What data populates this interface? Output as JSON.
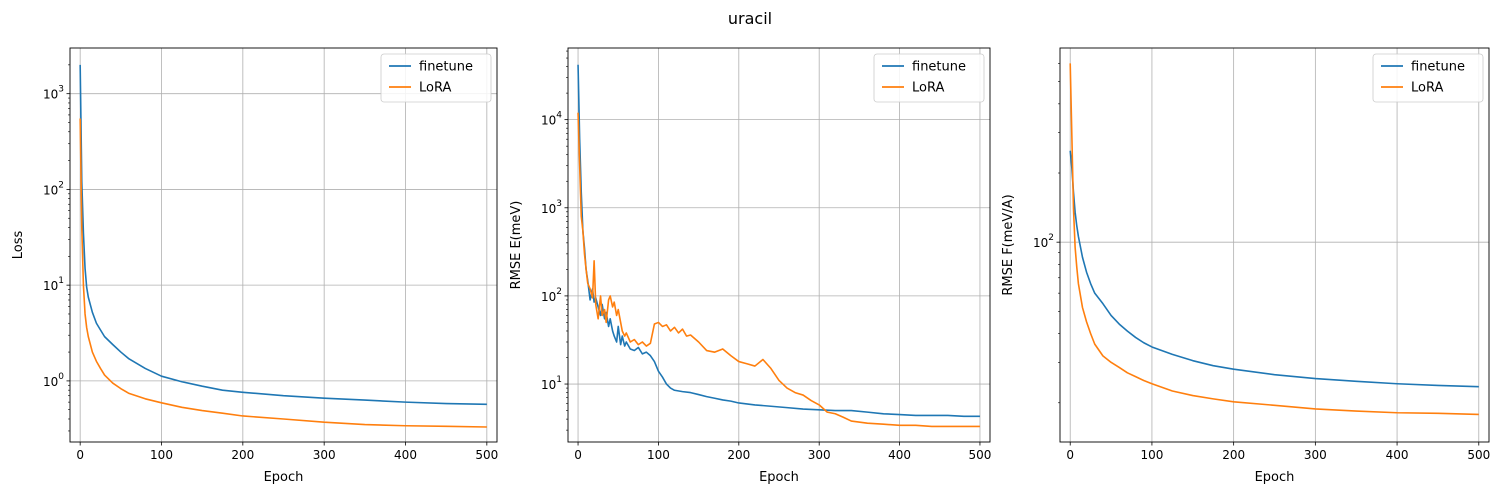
{
  "figure": {
    "title": "uracil"
  },
  "chart_data": [
    {
      "type": "line",
      "title": "",
      "xlabel": "Epoch",
      "ylabel": "Loss",
      "yscale": "log",
      "xlim": [
        -12.5,
        512.5
      ],
      "ylim": [
        0.23,
        3000
      ],
      "xticks": [
        0,
        100,
        200,
        300,
        400,
        500
      ],
      "xtick_labels": [
        "0",
        "100",
        "200",
        "300",
        "400",
        "500"
      ],
      "yticks": [
        1,
        10,
        100,
        1000
      ],
      "ytick_labels": [
        "10^0",
        "10^1",
        "10^2",
        "10^3"
      ],
      "grid": true,
      "legend": "top-right",
      "series": [
        {
          "name": "finetune",
          "color": "#1f77b4",
          "x": [
            0,
            2,
            4,
            6,
            8,
            10,
            15,
            20,
            25,
            30,
            40,
            50,
            60,
            80,
            100,
            125,
            150,
            175,
            200,
            250,
            300,
            350,
            400,
            450,
            500
          ],
          "y": [
            2000,
            120,
            35,
            15,
            9.5,
            7.5,
            5.2,
            4.0,
            3.4,
            2.9,
            2.4,
            2.0,
            1.7,
            1.35,
            1.12,
            0.98,
            0.88,
            0.8,
            0.76,
            0.7,
            0.66,
            0.63,
            0.6,
            0.58,
            0.57
          ]
        },
        {
          "name": "LoRA",
          "color": "#ff7f0e",
          "x": [
            0,
            2,
            4,
            6,
            8,
            10,
            15,
            20,
            25,
            30,
            40,
            50,
            60,
            80,
            100,
            125,
            150,
            175,
            200,
            250,
            300,
            350,
            400,
            450,
            500
          ],
          "y": [
            550,
            40,
            10,
            5.0,
            3.6,
            2.9,
            2.0,
            1.6,
            1.35,
            1.15,
            0.95,
            0.83,
            0.74,
            0.65,
            0.59,
            0.53,
            0.49,
            0.46,
            0.43,
            0.4,
            0.37,
            0.35,
            0.34,
            0.335,
            0.33
          ]
        }
      ]
    },
    {
      "type": "line",
      "title": "",
      "xlabel": "Epoch",
      "ylabel": "RMSE E(meV)",
      "yscale": "log",
      "xlim": [
        -12.5,
        512.5
      ],
      "ylim": [
        2.2,
        65000
      ],
      "xticks": [
        0,
        100,
        200,
        300,
        400,
        500
      ],
      "xtick_labels": [
        "0",
        "100",
        "200",
        "300",
        "400",
        "500"
      ],
      "yticks": [
        10,
        100,
        1000,
        10000
      ],
      "ytick_labels": [
        "10^1",
        "10^2",
        "10^3",
        "10^4"
      ],
      "grid": true,
      "legend": "top-right",
      "series": [
        {
          "name": "finetune",
          "color": "#1f77b4",
          "x": [
            0,
            2,
            4,
            6,
            8,
            10,
            12,
            15,
            18,
            20,
            22,
            25,
            28,
            30,
            33,
            35,
            38,
            40,
            43,
            45,
            48,
            50,
            53,
            55,
            58,
            60,
            65,
            70,
            75,
            80,
            85,
            90,
            95,
            100,
            105,
            110,
            115,
            120,
            130,
            140,
            150,
            160,
            170,
            180,
            190,
            200,
            220,
            240,
            260,
            280,
            300,
            320,
            340,
            360,
            380,
            400,
            420,
            440,
            460,
            480,
            500
          ],
          "y": [
            42000,
            6000,
            1500,
            550,
            350,
            200,
            150,
            90,
            120,
            85,
            95,
            75,
            60,
            80,
            55,
            65,
            45,
            55,
            40,
            35,
            30,
            45,
            28,
            35,
            27,
            30,
            25,
            24,
            26,
            22,
            23,
            21,
            18,
            14,
            12,
            10,
            9,
            8.5,
            8.2,
            8.0,
            7.6,
            7.2,
            6.9,
            6.6,
            6.4,
            6.1,
            5.8,
            5.6,
            5.4,
            5.2,
            5.1,
            5.0,
            5.0,
            4.8,
            4.6,
            4.5,
            4.4,
            4.4,
            4.4,
            4.3,
            4.3
          ]
        },
        {
          "name": "LoRA",
          "color": "#ff7f0e",
          "x": [
            0,
            2,
            4,
            6,
            8,
            10,
            12,
            15,
            18,
            20,
            22,
            25,
            28,
            30,
            33,
            35,
            38,
            40,
            43,
            45,
            48,
            50,
            53,
            55,
            58,
            60,
            65,
            70,
            75,
            80,
            85,
            90,
            95,
            100,
            105,
            110,
            115,
            120,
            125,
            130,
            135,
            140,
            150,
            160,
            170,
            180,
            190,
            200,
            210,
            220,
            230,
            240,
            250,
            260,
            270,
            280,
            290,
            300,
            310,
            320,
            330,
            340,
            360,
            380,
            400,
            420,
            440,
            460,
            480,
            500
          ],
          "y": [
            12000,
            3000,
            800,
            550,
            300,
            200,
            140,
            120,
            95,
            250,
            80,
            55,
            100,
            60,
            70,
            50,
            90,
            100,
            75,
            85,
            60,
            70,
            50,
            40,
            35,
            38,
            30,
            32,
            28,
            30,
            27,
            29,
            48,
            50,
            45,
            47,
            40,
            44,
            38,
            42,
            35,
            36,
            30,
            24,
            23,
            25,
            21,
            18,
            17,
            16,
            19,
            15,
            11,
            9,
            8,
            7.5,
            6.5,
            5.8,
            4.8,
            4.6,
            4.2,
            3.8,
            3.6,
            3.5,
            3.4,
            3.4,
            3.3,
            3.3,
            3.3,
            3.3
          ]
        }
      ]
    },
    {
      "type": "line",
      "title": "",
      "xlabel": "Epoch",
      "ylabel": "RMSE F(meV/A)",
      "yscale": "log",
      "xlim": [
        -12.5,
        512.5
      ],
      "ylim": [
        13.5,
        700
      ],
      "xticks": [
        0,
        100,
        200,
        300,
        400,
        500
      ],
      "xtick_labels": [
        "0",
        "100",
        "200",
        "300",
        "400",
        "500"
      ],
      "yticks": [
        100
      ],
      "ytick_labels": [
        "10^2"
      ],
      "grid": true,
      "legend": "top-right",
      "series": [
        {
          "name": "finetune",
          "color": "#1f77b4",
          "x": [
            0,
            2,
            4,
            6,
            8,
            10,
            15,
            20,
            25,
            30,
            40,
            50,
            60,
            70,
            80,
            90,
            100,
            125,
            150,
            175,
            200,
            250,
            300,
            350,
            400,
            450,
            500
          ],
          "y": [
            250,
            210,
            165,
            135,
            118,
            106,
            86,
            74,
            66,
            60,
            54,
            48,
            44,
            41,
            38.5,
            36.5,
            35,
            32.5,
            30.5,
            29,
            28,
            26.5,
            25.5,
            24.8,
            24.2,
            23.8,
            23.5
          ]
        },
        {
          "name": "LoRA",
          "color": "#ff7f0e",
          "x": [
            0,
            2,
            4,
            6,
            8,
            10,
            15,
            20,
            25,
            30,
            40,
            50,
            60,
            70,
            80,
            90,
            100,
            125,
            150,
            175,
            200,
            250,
            300,
            350,
            400,
            450,
            500
          ],
          "y": [
            600,
            290,
            140,
            95,
            78,
            66,
            52,
            45,
            40,
            36,
            32,
            30,
            28.5,
            27,
            26,
            25,
            24.2,
            22.5,
            21.5,
            20.8,
            20.2,
            19.5,
            18.8,
            18.4,
            18.1,
            18.0,
            17.8
          ]
        }
      ]
    }
  ]
}
